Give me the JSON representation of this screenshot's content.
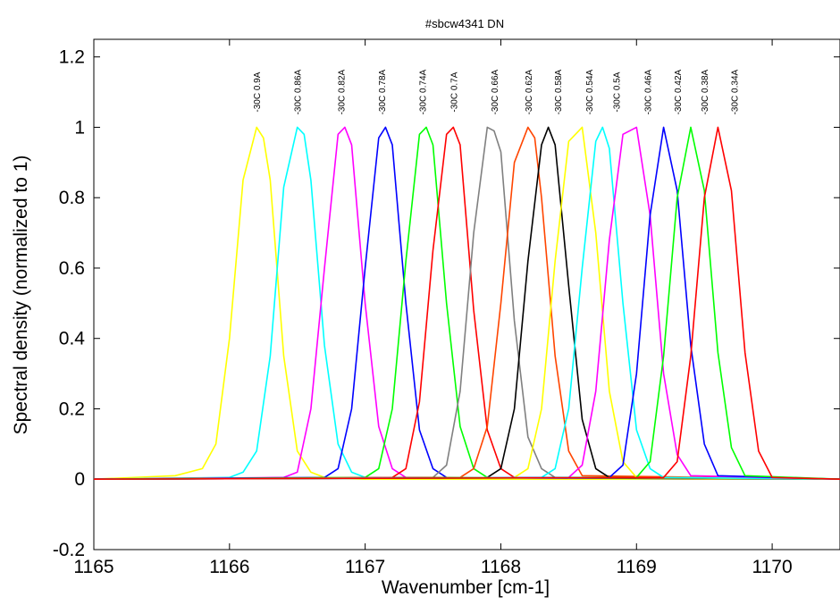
{
  "chart_data": {
    "type": "line",
    "title": "#sbcw4341 DN",
    "xlabel": "Wavenumber [cm-1]",
    "ylabel": "Spectral density (normalized to 1)",
    "xlim": [
      1165,
      1170.5
    ],
    "ylim": [
      -0.2,
      1.25
    ],
    "xticks": [
      1165,
      1166,
      1167,
      1168,
      1169,
      1170
    ],
    "xtick_labels": [
      "1165",
      "1166",
      "1167",
      "1168",
      "1169",
      "1170"
    ],
    "yticks": [
      -0.2,
      0,
      0.2,
      0.4,
      0.6,
      0.8,
      1,
      1.2
    ],
    "ytick_labels": [
      "-0.2",
      "0",
      "0.2",
      "0.4",
      "0.6",
      "0.8",
      "1",
      "1.2"
    ],
    "grid": false,
    "series": [
      {
        "name": "-30C 0.9A",
        "color": "#ffff00",
        "x": [
          1165.0,
          1165.6,
          1165.8,
          1165.9,
          1166.0,
          1166.1,
          1166.2,
          1166.25,
          1166.3,
          1166.4,
          1166.5,
          1166.6,
          1166.7,
          1167.0,
          1170.5
        ],
        "y": [
          0.0,
          0.01,
          0.03,
          0.1,
          0.4,
          0.85,
          1.0,
          0.97,
          0.85,
          0.35,
          0.08,
          0.02,
          0.005,
          0.0,
          0.0
        ]
      },
      {
        "name": "-30C 0.86A",
        "color": "#00ffff",
        "x": [
          1165.0,
          1166.0,
          1166.1,
          1166.2,
          1166.3,
          1166.4,
          1166.5,
          1166.55,
          1166.6,
          1166.7,
          1166.8,
          1166.9,
          1167.0,
          1170.5
        ],
        "y": [
          0.0,
          0.005,
          0.02,
          0.08,
          0.35,
          0.83,
          1.0,
          0.98,
          0.85,
          0.38,
          0.1,
          0.02,
          0.005,
          0.0
        ]
      },
      {
        "name": "-30C 0.82A",
        "color": "#ff00ff",
        "x": [
          1165.0,
          1166.4,
          1166.5,
          1166.6,
          1166.7,
          1166.8,
          1166.85,
          1166.9,
          1167.0,
          1167.1,
          1167.2,
          1167.3,
          1170.5
        ],
        "y": [
          0.0,
          0.005,
          0.02,
          0.2,
          0.6,
          0.98,
          1.0,
          0.95,
          0.5,
          0.15,
          0.03,
          0.005,
          0.0
        ]
      },
      {
        "name": "-30C 0.78A",
        "color": "#0000ff",
        "x": [
          1165.0,
          1166.7,
          1166.8,
          1166.9,
          1167.0,
          1167.1,
          1167.15,
          1167.2,
          1167.3,
          1167.4,
          1167.5,
          1167.6,
          1170.5
        ],
        "y": [
          0.0,
          0.005,
          0.03,
          0.2,
          0.6,
          0.97,
          1.0,
          0.95,
          0.5,
          0.14,
          0.03,
          0.005,
          0.0
        ]
      },
      {
        "name": "-30C 0.74A",
        "color": "#00ff00",
        "x": [
          1165.0,
          1167.0,
          1167.1,
          1167.2,
          1167.3,
          1167.4,
          1167.45,
          1167.5,
          1167.6,
          1167.7,
          1167.8,
          1167.9,
          1170.5
        ],
        "y": [
          0.0,
          0.005,
          0.03,
          0.2,
          0.62,
          0.98,
          1.0,
          0.95,
          0.5,
          0.15,
          0.03,
          0.005,
          0.0
        ]
      },
      {
        "name": "-30C 0.7A",
        "color": "#ff0000",
        "x": [
          1165.0,
          1167.2,
          1167.3,
          1167.4,
          1167.5,
          1167.6,
          1167.65,
          1167.7,
          1167.8,
          1167.9,
          1168.0,
          1168.1,
          1170.5
        ],
        "y": [
          0.0,
          0.005,
          0.03,
          0.22,
          0.65,
          0.98,
          1.0,
          0.95,
          0.48,
          0.14,
          0.03,
          0.005,
          0.0
        ]
      },
      {
        "name": "-30C 0.66A",
        "color": "#808080",
        "x": [
          1165.0,
          1167.5,
          1167.6,
          1167.7,
          1167.8,
          1167.9,
          1167.95,
          1168.0,
          1168.1,
          1168.2,
          1168.3,
          1168.4,
          1170.5
        ],
        "y": [
          0.0,
          0.005,
          0.04,
          0.25,
          0.7,
          1.0,
          0.99,
          0.93,
          0.45,
          0.12,
          0.03,
          0.005,
          0.0
        ]
      },
      {
        "name": "-30C 0.62A",
        "color": "#ff4500",
        "x": [
          1165.0,
          1167.7,
          1167.8,
          1167.9,
          1168.0,
          1168.1,
          1168.2,
          1168.25,
          1168.3,
          1168.4,
          1168.5,
          1168.6,
          1170.5
        ],
        "y": [
          0.0,
          0.005,
          0.03,
          0.15,
          0.5,
          0.9,
          1.0,
          0.97,
          0.8,
          0.35,
          0.08,
          0.01,
          0.0
        ]
      },
      {
        "name": "-30C 0.58A",
        "color": "#000000",
        "x": [
          1165.0,
          1167.9,
          1168.0,
          1168.1,
          1168.2,
          1168.3,
          1168.35,
          1168.4,
          1168.5,
          1168.6,
          1168.7,
          1168.8,
          1170.5
        ],
        "y": [
          0.0,
          0.005,
          0.03,
          0.2,
          0.62,
          0.95,
          1.0,
          0.95,
          0.55,
          0.17,
          0.03,
          0.005,
          0.0
        ]
      },
      {
        "name": "-30C 0.54A",
        "color": "#ffff00",
        "x": [
          1165.0,
          1168.1,
          1168.2,
          1168.3,
          1168.4,
          1168.5,
          1168.6,
          1168.7,
          1168.8,
          1168.9,
          1169.0,
          1170.5
        ],
        "y": [
          0.0,
          0.005,
          0.03,
          0.2,
          0.62,
          0.96,
          1.0,
          0.7,
          0.25,
          0.05,
          0.005,
          0.0
        ]
      },
      {
        "name": "-30C 0.5A",
        "color": "#00ffff",
        "x": [
          1165.0,
          1168.3,
          1168.4,
          1168.5,
          1168.6,
          1168.7,
          1168.75,
          1168.8,
          1168.9,
          1169.0,
          1169.1,
          1169.2,
          1170.5
        ],
        "y": [
          0.0,
          0.005,
          0.03,
          0.2,
          0.6,
          0.96,
          1.0,
          0.94,
          0.5,
          0.14,
          0.03,
          0.005,
          0.0
        ]
      },
      {
        "name": "-30C 0.46A",
        "color": "#ff00ff",
        "x": [
          1165.0,
          1168.5,
          1168.6,
          1168.7,
          1168.8,
          1168.9,
          1169.0,
          1169.1,
          1169.2,
          1169.3,
          1169.4,
          1170.5
        ],
        "y": [
          0.0,
          0.005,
          0.04,
          0.25,
          0.68,
          0.98,
          1.0,
          0.75,
          0.3,
          0.07,
          0.01,
          0.0
        ]
      },
      {
        "name": "-30C 0.42A",
        "color": "#0000ff",
        "x": [
          1165.0,
          1168.8,
          1168.9,
          1169.0,
          1169.1,
          1169.2,
          1169.3,
          1169.4,
          1169.5,
          1169.6,
          1170.5
        ],
        "y": [
          0.0,
          0.005,
          0.04,
          0.3,
          0.75,
          1.0,
          0.82,
          0.38,
          0.1,
          0.01,
          0.0
        ]
      },
      {
        "name": "-30C 0.38A",
        "color": "#00ff00",
        "x": [
          1165.0,
          1169.0,
          1169.1,
          1169.2,
          1169.3,
          1169.4,
          1169.5,
          1169.6,
          1169.7,
          1169.8,
          1170.5
        ],
        "y": [
          0.0,
          0.005,
          0.05,
          0.35,
          0.8,
          1.0,
          0.82,
          0.36,
          0.09,
          0.01,
          0.0
        ]
      },
      {
        "name": "-30C 0.34A",
        "color": "#ff0000",
        "x": [
          1165.0,
          1169.2,
          1169.3,
          1169.4,
          1169.5,
          1169.6,
          1169.7,
          1169.8,
          1169.9,
          1170.0,
          1170.5
        ],
        "y": [
          0.0,
          0.005,
          0.05,
          0.35,
          0.8,
          1.0,
          0.82,
          0.36,
          0.08,
          0.005,
          0.0
        ]
      }
    ],
    "peak_labels": [
      {
        "text": "-30C 0.9A",
        "x": 1166.2
      },
      {
        "text": "-30C 0.86A",
        "x": 1166.5
      },
      {
        "text": "-30C 0.82A",
        "x": 1166.82
      },
      {
        "text": "-30C 0.78A",
        "x": 1167.12
      },
      {
        "text": "-30C 0.74A",
        "x": 1167.42
      },
      {
        "text": "-30C 0.7A",
        "x": 1167.65
      },
      {
        "text": "-30C 0.66A",
        "x": 1167.95
      },
      {
        "text": "-30C 0.62A",
        "x": 1168.2
      },
      {
        "text": "-30C 0.58A",
        "x": 1168.42
      },
      {
        "text": "-30C 0.54A",
        "x": 1168.65
      },
      {
        "text": "-30C 0.5A",
        "x": 1168.85
      },
      {
        "text": "-30C 0.46A",
        "x": 1169.08
      },
      {
        "text": "-30C 0.42A",
        "x": 1169.3
      },
      {
        "text": "-30C 0.38A",
        "x": 1169.5
      },
      {
        "text": "-30C 0.34A",
        "x": 1169.72
      }
    ],
    "peak_label_y": 1.1
  }
}
